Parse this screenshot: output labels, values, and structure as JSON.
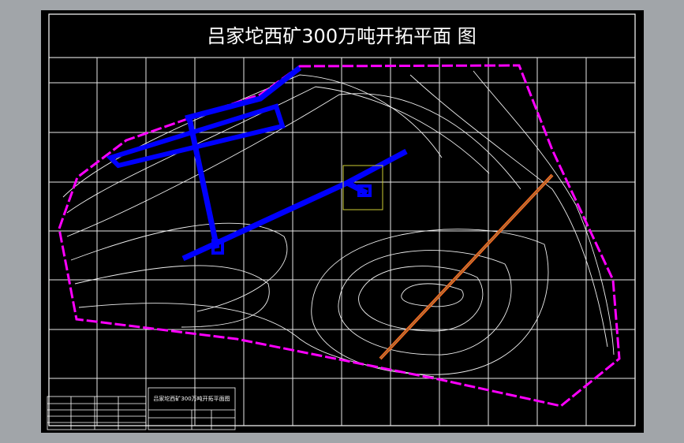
{
  "drawing": {
    "title": "吕家坨西矿300万吨开拓平面 图",
    "title_block": {
      "title": "吕家坨西矿300万吨开拓平面图"
    }
  }
}
